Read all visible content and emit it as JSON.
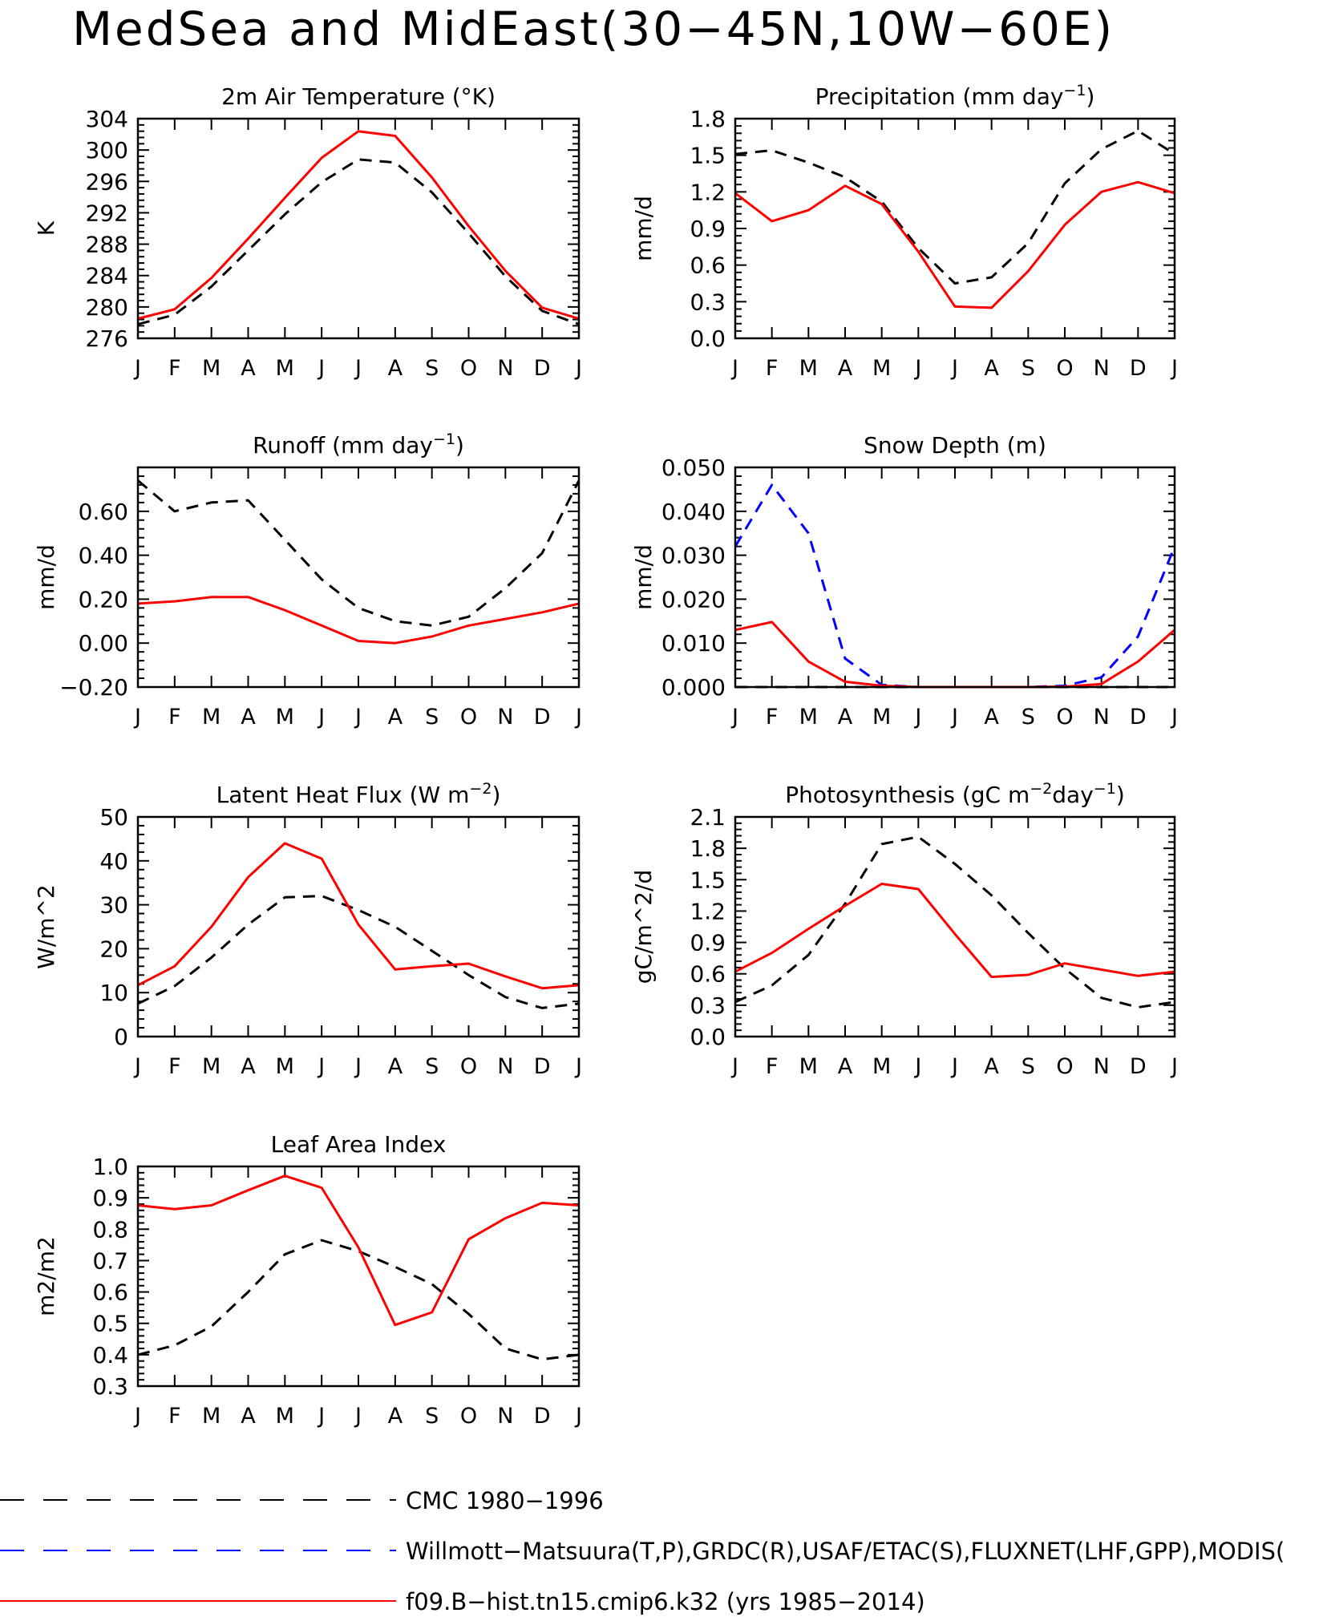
{
  "page_title": "MedSea and MidEast(30−45N,10W−60E)",
  "colors": {
    "cmc": "#000000",
    "obs": "#0000ff",
    "model": "#ff0000"
  },
  "legend": [
    {
      "label": "CMC 1980−1996",
      "color": "#000000",
      "style": "long-dash"
    },
    {
      "label": "Willmott−Matsuura(T,P),GRDC(R),USAF/ETAC(S),FLUXNET(LHF,GPP),MODIS(",
      "color": "#0000ff",
      "style": "long-dash"
    },
    {
      "label": "f09.B−hist.tn15.cmip6.k32 (yrs 1985−2014)",
      "color": "#ff0000",
      "style": "solid"
    }
  ],
  "chart_data": [
    {
      "type": "line",
      "title": "2m Air Temperature (°K)",
      "ylabel": "K",
      "x": [
        "J",
        "F",
        "M",
        "A",
        "M",
        "J",
        "J",
        "A",
        "S",
        "O",
        "N",
        "D",
        "J"
      ],
      "ylim": [
        276,
        304
      ],
      "yticks": [
        "304",
        "300",
        "296",
        "292",
        "288",
        "284",
        "280",
        "276"
      ],
      "series": [
        {
          "name": "CMC 1980−1996",
          "color": "#000000",
          "dash": true,
          "values": [
            277.8,
            279.0,
            282.6,
            287.2,
            291.8,
            295.9,
            298.8,
            298.4,
            294.6,
            289.4,
            283.9,
            279.5,
            277.8
          ]
        },
        {
          "name": "f09.B−hist.tn15.cmip6.k32 (yrs 1985−2014)",
          "color": "#ff0000",
          "dash": false,
          "values": [
            278.5,
            279.7,
            283.7,
            288.7,
            293.9,
            299.0,
            302.4,
            301.8,
            296.5,
            290.3,
            284.6,
            279.9,
            278.5
          ]
        }
      ]
    },
    {
      "type": "line",
      "title": "Precipitation (mm day",
      "title_sup": "−1",
      "title_end": ")",
      "ylabel": "mm/d",
      "x": [
        "J",
        "F",
        "M",
        "A",
        "M",
        "J",
        "J",
        "A",
        "S",
        "O",
        "N",
        "D",
        "J"
      ],
      "ylim": [
        0,
        1.8
      ],
      "yticks": [
        "1.8",
        "1.5",
        "1.2",
        "0.9",
        "0.6",
        "0.3",
        "0.0"
      ],
      "series": [
        {
          "name": "CMC 1980−1996",
          "color": "#000000",
          "dash": true,
          "values": [
            1.51,
            1.54,
            1.44,
            1.32,
            1.12,
            0.74,
            0.45,
            0.5,
            0.78,
            1.27,
            1.55,
            1.7,
            1.51
          ]
        },
        {
          "name": "f09.B−hist.tn15.cmip6.k32 (yrs 1985−2014)",
          "color": "#ff0000",
          "dash": false,
          "values": [
            1.19,
            0.96,
            1.05,
            1.25,
            1.1,
            0.71,
            0.26,
            0.25,
            0.55,
            0.93,
            1.2,
            1.28,
            1.19
          ]
        }
      ]
    },
    {
      "type": "line",
      "title": "Runoff (mm day",
      "title_sup": "−1",
      "title_end": ")",
      "ylabel": "mm/d",
      "x": [
        "J",
        "F",
        "M",
        "A",
        "M",
        "J",
        "J",
        "A",
        "S",
        "O",
        "N",
        "D",
        "J"
      ],
      "ylim": [
        -0.2,
        0.8
      ],
      "yticks": [
        "",
        "0.60",
        "0.40",
        "0.20",
        "0.00",
        "−0.20"
      ],
      "series": [
        {
          "name": "CMC 1980−1996",
          "color": "#000000",
          "dash": true,
          "values": [
            0.74,
            0.6,
            0.64,
            0.65,
            0.47,
            0.29,
            0.16,
            0.1,
            0.08,
            0.12,
            0.25,
            0.41,
            0.74
          ]
        },
        {
          "name": "f09.B−hist.tn15.cmip6.k32 (yrs 1985−2014)",
          "color": "#ff0000",
          "dash": false,
          "values": [
            0.18,
            0.19,
            0.21,
            0.21,
            0.15,
            0.08,
            0.01,
            0.0,
            0.03,
            0.08,
            0.11,
            0.14,
            0.18
          ]
        }
      ]
    },
    {
      "type": "line",
      "title": "Snow Depth (m)",
      "ylabel": "mm/d",
      "x": [
        "J",
        "F",
        "M",
        "A",
        "M",
        "J",
        "J",
        "A",
        "S",
        "O",
        "N",
        "D",
        "J"
      ],
      "ylim": [
        0,
        0.05
      ],
      "yticks": [
        "0.050",
        "0.040",
        "0.030",
        "0.020",
        "0.010",
        "0.000"
      ],
      "series": [
        {
          "name": "CMC 1980−1996",
          "color": "#000000",
          "dash": true,
          "values": [
            0,
            0,
            0,
            0,
            0,
            0,
            0,
            0,
            0,
            0,
            0,
            0,
            0
          ]
        },
        {
          "name": "Willmott−Matsuura(T,P),GRDC(R),USAF/ETAC(S),FLUXNET(LHF,GPP),MODIS(",
          "color": "#0000ff",
          "dash": true,
          "values": [
            0.032,
            0.046,
            0.035,
            0.0065,
            0.0005,
            0,
            0,
            0,
            0,
            0.0003,
            0.0022,
            0.0115,
            0.032
          ]
        },
        {
          "name": "f09.B−hist.tn15.cmip6.k32 (yrs 1985−2014)",
          "color": "#ff0000",
          "dash": false,
          "values": [
            0.013,
            0.0148,
            0.0058,
            0.0012,
            0.0003,
            0,
            0,
            0,
            0,
            0.0001,
            0.0007,
            0.0058,
            0.013
          ]
        }
      ]
    },
    {
      "type": "line",
      "title": "Latent Heat Flux (W m",
      "title_sup": "−2",
      "title_end": ")",
      "ylabel": "W/m^2",
      "x": [
        "J",
        "F",
        "M",
        "A",
        "M",
        "J",
        "J",
        "A",
        "S",
        "O",
        "N",
        "D",
        "J"
      ],
      "ylim": [
        0,
        50
      ],
      "yticks": [
        "50",
        "40",
        "30",
        "20",
        "10",
        "0"
      ],
      "series": [
        {
          "name": "CMC 1980−1996",
          "color": "#000000",
          "dash": true,
          "values": [
            7.5,
            11.5,
            18.0,
            25.5,
            31.7,
            32.0,
            28.8,
            25.0,
            19.5,
            14.0,
            9.0,
            6.5,
            7.5
          ]
        },
        {
          "name": "f09.B−hist.tn15.cmip6.k32 (yrs 1985−2014)",
          "color": "#ff0000",
          "dash": false,
          "values": [
            11.7,
            16.0,
            25.0,
            36.3,
            44.0,
            40.5,
            25.5,
            15.3,
            16.0,
            16.6,
            13.7,
            11.0,
            11.7
          ]
        }
      ]
    },
    {
      "type": "line",
      "title": "Photosynthesis (gC m",
      "title_sup": "−2",
      "title_mid": "day",
      "title_sup2": "−1",
      "title_end": ")",
      "ylabel": "gC/m^2/d",
      "x": [
        "J",
        "F",
        "M",
        "A",
        "M",
        "J",
        "J",
        "A",
        "S",
        "O",
        "N",
        "D",
        "J"
      ],
      "ylim": [
        0,
        2.1
      ],
      "yticks": [
        "2.1",
        "1.8",
        "1.5",
        "1.2",
        "0.9",
        "0.6",
        "0.3",
        "0.0"
      ],
      "series": [
        {
          "name": "CMC 1980−1996",
          "color": "#000000",
          "dash": true,
          "values": [
            0.33,
            0.49,
            0.78,
            1.27,
            1.84,
            1.91,
            1.65,
            1.35,
            0.99,
            0.65,
            0.37,
            0.28,
            0.33
          ]
        },
        {
          "name": "f09.B−hist.tn15.cmip6.k32 (yrs 1985−2014)",
          "color": "#ff0000",
          "dash": false,
          "values": [
            0.62,
            0.8,
            1.03,
            1.25,
            1.46,
            1.41,
            0.98,
            0.57,
            0.59,
            0.7,
            0.64,
            0.58,
            0.62
          ]
        }
      ]
    },
    {
      "type": "line",
      "title": "Leaf Area Index",
      "ylabel": "m2/m2",
      "x": [
        "J",
        "F",
        "M",
        "A",
        "M",
        "J",
        "J",
        "A",
        "S",
        "O",
        "N",
        "D",
        "J"
      ],
      "ylim": [
        0.3,
        1.0
      ],
      "yticks": [
        "1.0",
        "0.9",
        "0.8",
        "0.7",
        "0.6",
        "0.5",
        "0.4",
        "0.3"
      ],
      "series": [
        {
          "name": "CMC 1980−1996",
          "color": "#000000",
          "dash": true,
          "values": [
            0.4,
            0.43,
            0.49,
            0.6,
            0.72,
            0.765,
            0.73,
            0.68,
            0.625,
            0.53,
            0.42,
            0.385,
            0.4
          ]
        },
        {
          "name": "f09.B−hist.tn15.cmip6.k32 (yrs 1985−2014)",
          "color": "#ff0000",
          "dash": false,
          "values": [
            0.876,
            0.864,
            0.876,
            0.924,
            0.97,
            0.932,
            0.742,
            0.495,
            0.535,
            0.768,
            0.835,
            0.884,
            0.876
          ]
        }
      ]
    }
  ]
}
